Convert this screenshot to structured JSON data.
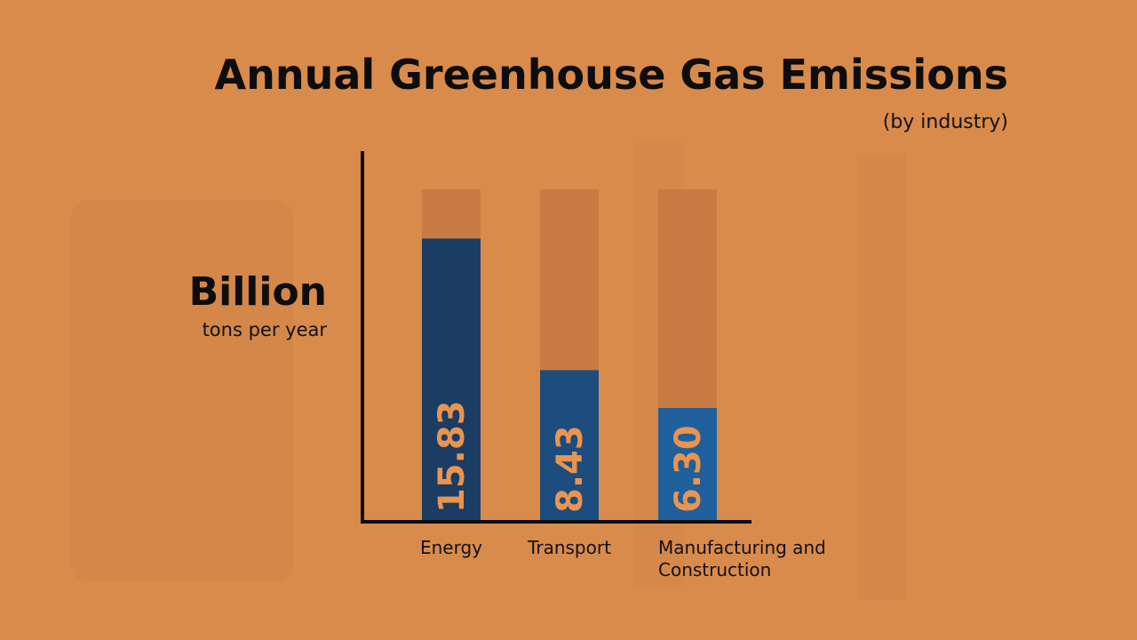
{
  "chart_data": {
    "type": "bar",
    "title": "Annual Greenhouse Gas Emissions",
    "subtitle": "(by industry)",
    "y_label": "Billion",
    "y_label_sub": "tons per year",
    "categories": [
      "Energy",
      "Transport",
      "Manufacturing and Construction"
    ],
    "values": [
      15.83,
      8.43,
      6.3
    ],
    "value_labels": [
      "15.83",
      "8.43",
      "6.30"
    ],
    "colors": [
      "#1b3d63",
      "#1d4c7e",
      "#1f5f9c"
    ],
    "ylim": [
      0,
      18.6
    ]
  }
}
